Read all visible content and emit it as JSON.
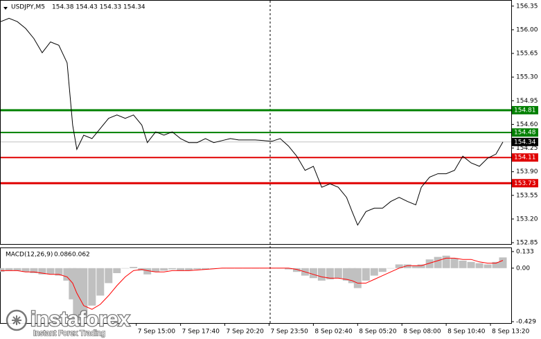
{
  "chart_data": [
    {
      "type": "line",
      "title": "USDJPY,M5",
      "subtitle": "154.38 154.43 154.33 154.34",
      "color": "#000000",
      "x": [
        0,
        6,
        12,
        18,
        24,
        30,
        36,
        42,
        48,
        52,
        55,
        60,
        66,
        72,
        78,
        84,
        90,
        96,
        102,
        106,
        112,
        118,
        124,
        130,
        136,
        142,
        148,
        154,
        160,
        166,
        172,
        178,
        184,
        190,
        196,
        202,
        208,
        214,
        220,
        226,
        232,
        238,
        244,
        250,
        254,
        258,
        264,
        270,
        276,
        282,
        288,
        294,
        300,
        304,
        310,
        316,
        322,
        328,
        334,
        340,
        346,
        352,
        358,
        363
      ],
      "values": [
        156.12,
        156.17,
        156.12,
        156.02,
        155.87,
        155.66,
        155.82,
        155.77,
        155.51,
        154.59,
        154.23,
        154.44,
        154.39,
        154.54,
        154.69,
        154.74,
        154.69,
        154.74,
        154.59,
        154.33,
        154.49,
        154.44,
        154.49,
        154.39,
        154.33,
        154.33,
        154.39,
        154.33,
        154.36,
        154.39,
        154.37,
        154.37,
        154.37,
        154.36,
        154.35,
        154.39,
        154.28,
        154.13,
        153.92,
        153.98,
        153.67,
        153.72,
        153.67,
        153.52,
        153.31,
        153.11,
        153.31,
        153.36,
        153.36,
        153.46,
        153.52,
        153.46,
        153.41,
        153.67,
        153.82,
        153.87,
        153.87,
        153.92,
        154.13,
        154.03,
        153.98,
        154.1,
        154.16,
        154.34
      ],
      "xlim": [
        0,
        369
      ],
      "ylim": [
        152.83,
        156.43
      ],
      "yticks": [
        156.35,
        {
          "value": 156,
          "label": "156.00"
        },
        155.65,
        {
          "value": 155.3,
          "label": "155.30"
        },
        154.95,
        {
          "value": 154.6,
          "label": "154.60"
        },
        154.25,
        {
          "value": 153.9,
          "label": "153.90"
        },
        153.55,
        {
          "value": 153.2,
          "label": "153.20"
        },
        152.85
      ],
      "levels": [
        {
          "value": 154.81,
          "color": "#008000",
          "width": 3
        },
        {
          "value": 154.48,
          "color": "#008000",
          "width": 2
        },
        {
          "value": 154.11,
          "color": "#e00000",
          "width": 2
        },
        {
          "value": 153.73,
          "color": "#e00000",
          "width": 3
        }
      ],
      "current_price": {
        "value": 154.34,
        "color": "#000000"
      }
    },
    {
      "type": "macd",
      "title": "MACD(12,26,9)",
      "xlim": [
        0,
        369
      ],
      "ylim": [
        -0.44,
        0.16
      ],
      "yticks": [
        0.133,
        {
          "value": 0,
          "label": "0.00"
        },
        -0.429
      ],
      "series": [
        {
          "type": "bar",
          "color": "#c0c0c0",
          "values": [
            -0.03,
            -0.02,
            -0.02,
            -0.03,
            -0.04,
            -0.05,
            -0.05,
            -0.06,
            -0.1,
            -0.25,
            -0.42,
            -0.38,
            -0.3,
            -0.22,
            -0.12,
            -0.04,
            0,
            0.01,
            -0.02,
            -0.05,
            -0.03,
            -0.02,
            -0.01,
            -0.02,
            -0.02,
            -0.01,
            -0.01,
            0,
            0,
            0,
            0,
            0,
            0,
            0,
            0,
            0,
            -0.01,
            -0.03,
            -0.06,
            -0.08,
            -0.1,
            -0.09,
            -0.08,
            -0.1,
            -0.12,
            -0.16,
            -0.1,
            -0.06,
            -0.03,
            0,
            0.03,
            0.03,
            0.02,
            0.03,
            0.07,
            0.09,
            0.1,
            0.08,
            0.06,
            0.05,
            0.04,
            0.03,
            0.05,
            0.086
          ]
        },
        {
          "type": "line",
          "color": "#ff0000",
          "values": [
            -0.02,
            -0.02,
            -0.02,
            -0.03,
            -0.03,
            -0.04,
            -0.05,
            -0.05,
            -0.07,
            -0.12,
            -0.2,
            -0.3,
            -0.33,
            -0.29,
            -0.22,
            -0.14,
            -0.07,
            -0.02,
            -0.01,
            -0.02,
            -0.03,
            -0.03,
            -0.02,
            -0.02,
            -0.02,
            -0.015,
            -0.01,
            -0.005,
            0,
            0,
            0,
            0,
            0,
            0,
            0,
            0,
            0,
            -0.01,
            -0.03,
            -0.05,
            -0.07,
            -0.08,
            -0.08,
            -0.09,
            -0.1,
            -0.12,
            -0.12,
            -0.09,
            -0.06,
            -0.03,
            0,
            0.02,
            0.02,
            0.02,
            0.04,
            0.06,
            0.08,
            0.08,
            0.07,
            0.07,
            0.05,
            0.04,
            0.04,
            0.062
          ]
        }
      ],
      "xticks": [
        {
          "value": 98,
          "label": "7 Sep 15:00"
        },
        {
          "value": 130,
          "label": "7 Sep 17:40"
        },
        {
          "value": 162,
          "label": "7 Sep 20:20"
        },
        {
          "value": 194,
          "label": "7 Sep 23:50"
        },
        {
          "value": 226,
          "label": "8 Sep 02:40"
        },
        {
          "value": 258,
          "label": "8 Sep 05:20"
        },
        {
          "value": 290,
          "label": "8 Sep 08:00"
        },
        {
          "value": 322,
          "label": "8 Sep 10:40"
        },
        {
          "value": 354,
          "label": "8 Sep 13:20"
        }
      ]
    }
  ],
  "watermark": {
    "brand": "instaforex",
    "tagline": "Instant Forex Trading"
  }
}
